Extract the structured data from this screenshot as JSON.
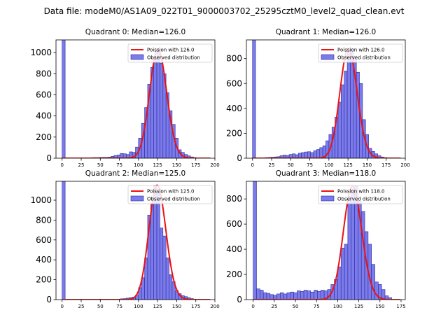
{
  "colors": {
    "bar_fill": "#7b7bec",
    "bar_edge": "#2a2a9a",
    "poisson_line": "#ee1111",
    "axis": "#000000",
    "legend_edge": "#cccccc"
  },
  "chart_data": {
    "title": "Data file: modeM0/AS1A09_022T01_9000003702_25295cztM0_level2_quad_clean.evt",
    "type": "histogram-grid",
    "panels": [
      {
        "title": "Quadrant 0: Median=126.0",
        "median": 126.0,
        "xlim": [
          -8,
          200
        ],
        "ylim": [
          0,
          1120
        ],
        "xticks": [
          0,
          25,
          50,
          75,
          100,
          125,
          150,
          175,
          200
        ],
        "yticks": [
          0,
          200,
          400,
          600,
          800,
          1000
        ],
        "bin_width": 4,
        "bins": [
          [
            0,
            1120
          ],
          [
            24,
            3
          ],
          [
            28,
            4
          ],
          [
            32,
            4
          ],
          [
            36,
            5
          ],
          [
            40,
            6
          ],
          [
            44,
            6
          ],
          [
            48,
            7
          ],
          [
            52,
            8
          ],
          [
            56,
            8
          ],
          [
            60,
            10
          ],
          [
            64,
            18
          ],
          [
            68,
            26
          ],
          [
            72,
            30
          ],
          [
            76,
            45
          ],
          [
            80,
            42
          ],
          [
            84,
            35
          ],
          [
            88,
            60
          ],
          [
            92,
            55
          ],
          [
            96,
            105
          ],
          [
            100,
            190
          ],
          [
            104,
            330
          ],
          [
            108,
            480
          ],
          [
            112,
            700
          ],
          [
            116,
            860
          ],
          [
            120,
            950
          ],
          [
            124,
            1030
          ],
          [
            128,
            900
          ],
          [
            132,
            800
          ],
          [
            136,
            620
          ],
          [
            140,
            450
          ],
          [
            144,
            320
          ],
          [
            148,
            190
          ],
          [
            152,
            80
          ],
          [
            156,
            55
          ],
          [
            160,
            35
          ],
          [
            164,
            22
          ],
          [
            168,
            12
          ],
          [
            172,
            6
          ],
          [
            176,
            3
          ]
        ],
        "legend": {
          "line": "Poission with 126.0",
          "bar": "Observed distribution"
        }
      },
      {
        "title": "Quadrant 1: Median=126.0",
        "median": 126.0,
        "xlim": [
          -8,
          200
        ],
        "ylim": [
          0,
          950
        ],
        "xticks": [
          0,
          25,
          50,
          75,
          100,
          125,
          150,
          175,
          200
        ],
        "yticks": [
          0,
          200,
          400,
          600,
          800
        ],
        "bin_width": 4,
        "bins": [
          [
            0,
            950
          ],
          [
            16,
            5
          ],
          [
            20,
            6
          ],
          [
            24,
            8
          ],
          [
            28,
            10
          ],
          [
            32,
            12
          ],
          [
            36,
            20
          ],
          [
            40,
            25
          ],
          [
            44,
            22
          ],
          [
            48,
            30
          ],
          [
            52,
            35
          ],
          [
            56,
            28
          ],
          [
            60,
            40
          ],
          [
            64,
            45
          ],
          [
            68,
            50
          ],
          [
            72,
            52
          ],
          [
            76,
            45
          ],
          [
            80,
            60
          ],
          [
            84,
            70
          ],
          [
            88,
            85
          ],
          [
            92,
            100
          ],
          [
            96,
            140
          ],
          [
            100,
            190
          ],
          [
            104,
            250
          ],
          [
            108,
            330
          ],
          [
            112,
            450
          ],
          [
            116,
            590
          ],
          [
            120,
            700
          ],
          [
            124,
            860
          ],
          [
            128,
            880
          ],
          [
            132,
            820
          ],
          [
            136,
            690
          ],
          [
            140,
            600
          ],
          [
            144,
            310
          ],
          [
            148,
            190
          ],
          [
            152,
            80
          ],
          [
            156,
            55
          ],
          [
            160,
            35
          ],
          [
            164,
            20
          ],
          [
            168,
            10
          ],
          [
            172,
            5
          ]
        ],
        "legend": {
          "line": "Poission with 126.0",
          "bar": "Observed distribution"
        }
      },
      {
        "title": "Quadrant 2: Median=125.0",
        "median": 125.0,
        "xlim": [
          -8,
          200
        ],
        "ylim": [
          0,
          1190
        ],
        "xticks": [
          0,
          25,
          50,
          75,
          100,
          125,
          150,
          175,
          200
        ],
        "yticks": [
          0,
          200,
          400,
          600,
          800,
          1000
        ],
        "bin_width": 4,
        "bins": [
          [
            0,
            1190
          ],
          [
            76,
            8
          ],
          [
            80,
            10
          ],
          [
            84,
            15
          ],
          [
            88,
            20
          ],
          [
            92,
            25
          ],
          [
            96,
            45
          ],
          [
            100,
            120
          ],
          [
            104,
            220
          ],
          [
            108,
            420
          ],
          [
            112,
            850
          ],
          [
            116,
            960
          ],
          [
            120,
            1150
          ],
          [
            124,
            1080
          ],
          [
            128,
            720
          ],
          [
            132,
            640
          ],
          [
            136,
            420
          ],
          [
            140,
            250
          ],
          [
            144,
            180
          ],
          [
            148,
            90
          ],
          [
            152,
            60
          ],
          [
            156,
            40
          ],
          [
            160,
            30
          ],
          [
            164,
            20
          ],
          [
            168,
            10
          ],
          [
            172,
            5
          ]
        ],
        "legend": {
          "line": "Poission with 125.0",
          "bar": "Observed distribution"
        }
      },
      {
        "title": "Quadrant 3: Median=118.0",
        "median": 118.0,
        "xlim": [
          -8,
          180
        ],
        "ylim": [
          0,
          940
        ],
        "xticks": [
          0,
          25,
          50,
          75,
          100,
          125,
          150,
          175
        ],
        "yticks": [
          0,
          200,
          400,
          600,
          800
        ],
        "bin_width": 4,
        "bins": [
          [
            0,
            940
          ],
          [
            4,
            85
          ],
          [
            8,
            75
          ],
          [
            12,
            55
          ],
          [
            16,
            50
          ],
          [
            20,
            40
          ],
          [
            24,
            35
          ],
          [
            28,
            45
          ],
          [
            32,
            55
          ],
          [
            36,
            45
          ],
          [
            40,
            55
          ],
          [
            44,
            60
          ],
          [
            48,
            55
          ],
          [
            52,
            70
          ],
          [
            56,
            65
          ],
          [
            60,
            75
          ],
          [
            64,
            70
          ],
          [
            68,
            60
          ],
          [
            72,
            75
          ],
          [
            76,
            65
          ],
          [
            80,
            75
          ],
          [
            84,
            70
          ],
          [
            88,
            80
          ],
          [
            92,
            120
          ],
          [
            96,
            160
          ],
          [
            100,
            260
          ],
          [
            104,
            410
          ],
          [
            108,
            440
          ],
          [
            112,
            820
          ],
          [
            116,
            880
          ],
          [
            120,
            900
          ],
          [
            124,
            780
          ],
          [
            128,
            700
          ],
          [
            132,
            540
          ],
          [
            136,
            440
          ],
          [
            140,
            280
          ],
          [
            144,
            140
          ],
          [
            148,
            120
          ],
          [
            152,
            80
          ],
          [
            156,
            30
          ],
          [
            160,
            15
          ]
        ],
        "legend": {
          "line": "Poission with 118.0",
          "bar": "Observed distribution"
        }
      }
    ]
  }
}
